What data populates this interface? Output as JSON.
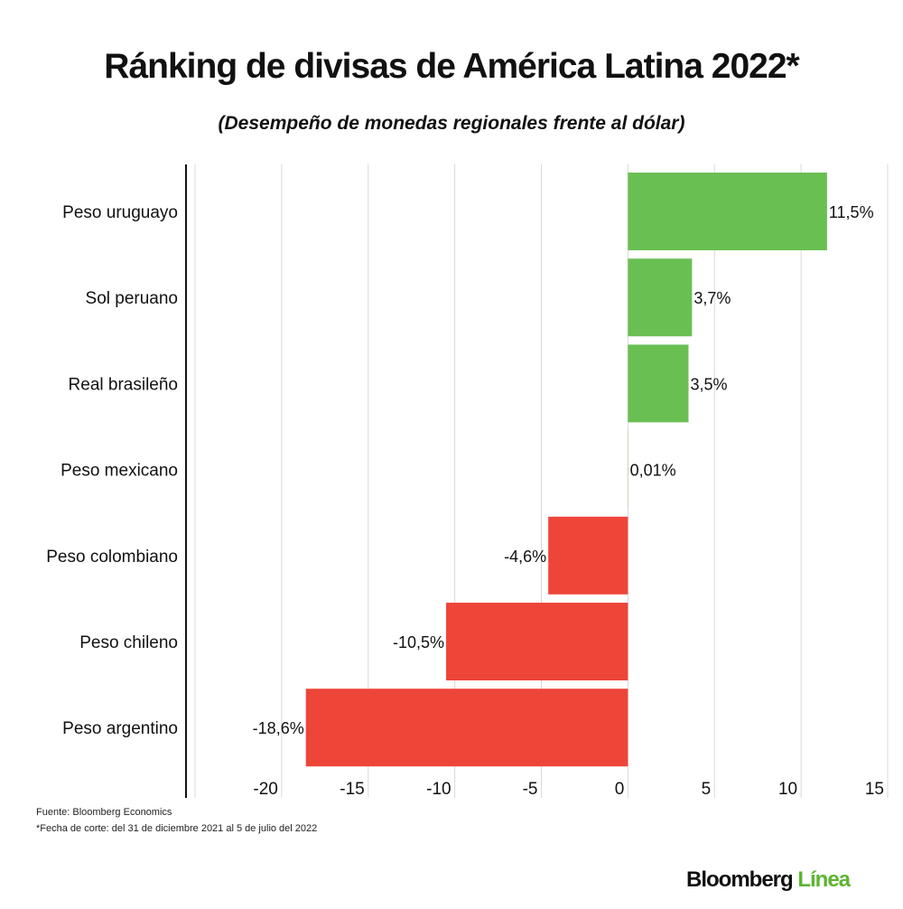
{
  "chart_data": {
    "type": "bar",
    "orientation": "horizontal",
    "title": "Ránking de divisas de América Latina 2022*",
    "subtitle": "(Desempeño de monedas regionales frente al dólar)",
    "categories": [
      "Peso uruguayo",
      "Sol peruano",
      "Real brasileño",
      "Peso mexicano",
      "Peso colombiano",
      "Peso chileno",
      "Peso argentino"
    ],
    "values": [
      11.5,
      3.7,
      3.5,
      0.01,
      -4.6,
      -10.5,
      -18.6
    ],
    "data_labels": [
      "11,5%",
      "3,7%",
      "3,5%",
      "0,01%",
      "-4,6%",
      "-10,5%",
      "-18,6%"
    ],
    "xlim": [
      -25,
      15
    ],
    "ticks": [
      -20,
      -15,
      -10,
      -5,
      0,
      5,
      10,
      15
    ],
    "tick_labels": [
      "-20",
      "-15",
      "-10",
      "-5",
      "0",
      "5",
      "10",
      "15"
    ],
    "grid": true,
    "colors": {
      "positive": "#6abf53",
      "negative": "#ee4539"
    }
  },
  "footer": {
    "source": "Fuente: Bloomberg Economics",
    "note": "*Fecha de corte: del 31 de diciembre 2021 al 5 de julio del 2022"
  },
  "logo": {
    "part1": "Bloomberg",
    "part2": "Línea"
  }
}
